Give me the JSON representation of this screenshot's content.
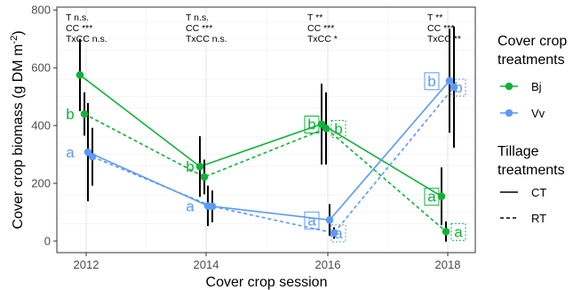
{
  "chart_data": {
    "type": "line",
    "xlabel": "Cover crop session",
    "ylabel": "Cover crop biomass (g DM m",
    "ylabel_sup": "-2",
    "ylabel_close": ")",
    "x_ticks": [
      "2012",
      "2014",
      "2016",
      "2018"
    ],
    "ylim": [
      -40,
      810
    ],
    "y_ticks": [
      0,
      200,
      400,
      600,
      800
    ],
    "grid": true,
    "legend_position": "right",
    "series": [
      {
        "cover": "Bj",
        "tillage": "CT",
        "color": "#10b23a",
        "dash": "solid",
        "x": [
          "2012",
          "2014",
          "2016",
          "2018"
        ],
        "y": [
          575,
          258,
          405,
          155
        ],
        "err": [
          125,
          105,
          140,
          100
        ]
      },
      {
        "cover": "Bj",
        "tillage": "RT",
        "color": "#10b23a",
        "dash": "dashed",
        "x": [
          "2012",
          "2014",
          "2016",
          "2018"
        ],
        "y": [
          440,
          222,
          390,
          33
        ],
        "err": [
          75,
          60,
          125,
          35
        ]
      },
      {
        "cover": "Vv",
        "tillage": "CT",
        "color": "#5b9af5",
        "dash": "solid",
        "x": [
          "2012",
          "2014",
          "2016",
          "2018"
        ],
        "y": [
          308,
          122,
          73,
          555
        ],
        "err": [
          170,
          70,
          55,
          180
        ]
      },
      {
        "cover": "Vv",
        "tillage": "RT",
        "color": "#5b9af5",
        "dash": "dashed",
        "x": [
          "2012",
          "2014",
          "2016",
          "2018"
        ],
        "y": [
          292,
          120,
          28,
          533
        ],
        "err": [
          100,
          55,
          20,
          210
        ]
      }
    ],
    "significance": [
      {
        "x": "2012",
        "lines": [
          "T n.s.",
          "CC ***",
          "TxCC n.s."
        ]
      },
      {
        "x": "2014",
        "lines": [
          "T n.s.",
          "CC ***",
          "TxCC n.s."
        ]
      },
      {
        "x": "2016",
        "lines": [
          "T **",
          "CC ***",
          "TxCC *"
        ]
      },
      {
        "x": "2018",
        "lines": [
          "T **",
          "CC ***",
          "TxCC **"
        ]
      }
    ],
    "letters": [
      {
        "x": "2012",
        "text": "b",
        "color": "#10b23a",
        "y": 440,
        "side": "left",
        "box": "none"
      },
      {
        "x": "2012",
        "text": "a",
        "color": "#5b9af5",
        "y": 308,
        "side": "left",
        "box": "none"
      },
      {
        "x": "2014",
        "text": "b",
        "color": "#10b23a",
        "y": 258,
        "side": "left",
        "box": "none"
      },
      {
        "x": "2014",
        "text": "a",
        "color": "#5b9af5",
        "y": 122,
        "side": "left",
        "box": "none"
      },
      {
        "x": "2016",
        "text": "b",
        "color": "#10b23a",
        "y": 405,
        "side": "left",
        "box": "solid"
      },
      {
        "x": "2016",
        "text": "b",
        "color": "#10b23a",
        "y": 390,
        "side": "right",
        "box": "dashed"
      },
      {
        "x": "2016",
        "text": "a",
        "color": "#5b9af5",
        "y": 73,
        "side": "left",
        "box": "solid"
      },
      {
        "x": "2016",
        "text": "a",
        "color": "#5b9af5",
        "y": 28,
        "side": "right",
        "box": "dashed"
      },
      {
        "x": "2018",
        "text": "a",
        "color": "#10b23a",
        "y": 155,
        "side": "left",
        "box": "solid"
      },
      {
        "x": "2018",
        "text": "a",
        "color": "#10b23a",
        "y": 33,
        "side": "right",
        "box": "dashed"
      },
      {
        "x": "2018",
        "text": "b",
        "color": "#5b9af5",
        "y": 555,
        "side": "left",
        "box": "solid"
      },
      {
        "x": "2018",
        "text": "b",
        "color": "#5b9af5",
        "y": 533,
        "side": "right",
        "box": "dashed"
      }
    ],
    "legend": {
      "cover_title": [
        "Cover crop",
        "treatments"
      ],
      "cover_items": [
        {
          "label": "Bj",
          "color": "#10b23a"
        },
        {
          "label": "Vv",
          "color": "#5b9af5"
        }
      ],
      "tillage_title": [
        "Tillage",
        "treatments"
      ],
      "tillage_items": [
        {
          "label": "CT",
          "dash": "solid"
        },
        {
          "label": "RT",
          "dash": "dashed"
        }
      ]
    }
  }
}
